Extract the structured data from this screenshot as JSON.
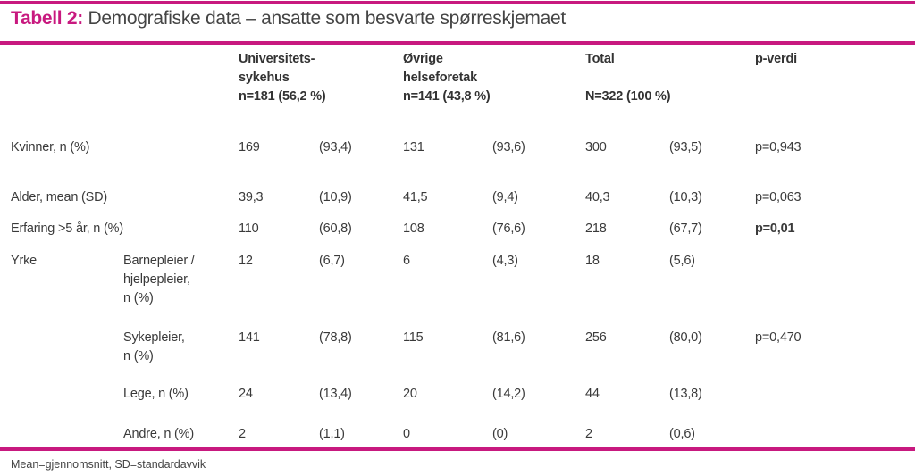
{
  "title": {
    "label": "Tabell 2:",
    "text": "Demografiske data – ansatte som besvarte spørreskjemaet"
  },
  "headers": {
    "uni": [
      "Universitets-",
      "sykehus",
      "n=181 (56,2 %)"
    ],
    "other": [
      "Øvrige",
      "helseforetak",
      "n=141 (43,8 %)"
    ],
    "total": [
      "Total",
      "N=322 (100 %)"
    ],
    "p": "p-verdi"
  },
  "rows": [
    {
      "label": "Kvinner, n (%)",
      "v": [
        "169",
        "(93,4)",
        "131",
        "(93,6)",
        "300",
        "(93,5)"
      ],
      "p": "p=0,943"
    },
    {
      "label": "Alder, mean (SD)",
      "v": [
        "39,3",
        "(10,9)",
        "41,5",
        "(9,4)",
        "40,3",
        "(10,3)"
      ],
      "p": "p=0,063"
    },
    {
      "label": "Erfaring >5 år, n (%)",
      "v": [
        "110",
        "(60,8)",
        "108",
        "(76,6)",
        "218",
        "(67,7)"
      ],
      "p": "p=0,01"
    },
    {
      "label": "Yrke",
      "sub": [
        "Barnepleier /",
        "hjelpepleier,",
        "n (%)"
      ],
      "v": [
        "12",
        "(6,7)",
        "6",
        "(4,3)",
        "18",
        "(5,6)"
      ]
    },
    {
      "sub": [
        "Sykepleier,",
        "n (%)"
      ],
      "v": [
        "141",
        "(78,8)",
        "115",
        "(81,6)",
        "256",
        "(80,0)"
      ],
      "p": "p=0,470"
    },
    {
      "sub": [
        "Lege, n (%)"
      ],
      "v": [
        "24",
        "(13,4)",
        "20",
        "(14,2)",
        "44",
        "(13,8)"
      ]
    },
    {
      "sub": [
        "Andre, n (%)"
      ],
      "v": [
        "2",
        "(1,1)",
        "0",
        "(0)",
        "2",
        "(0,6)"
      ]
    }
  ],
  "footnote": "Mean=gjennomsnitt, SD=standardavvik",
  "colors": {
    "accent": "#c8197f"
  }
}
